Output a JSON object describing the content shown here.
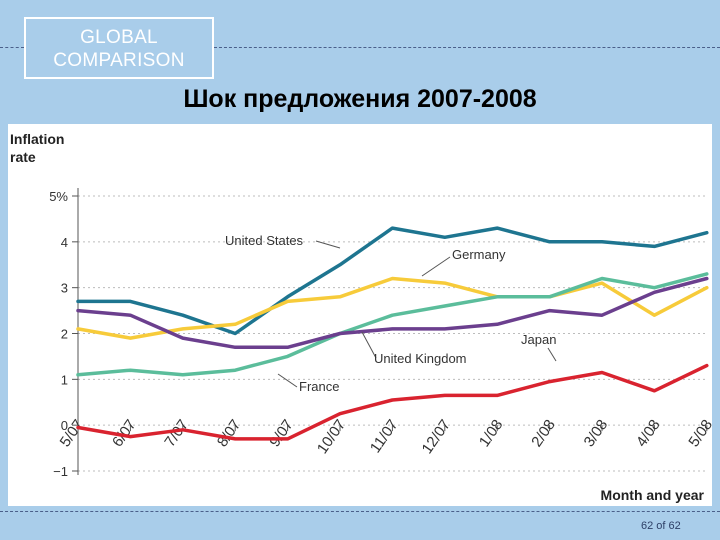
{
  "header": {
    "badge_line1": "GLOBAL",
    "badge_line2": "COMPARISON",
    "title": "Шок предложения 2007-2008"
  },
  "footer": {
    "page": "62 of 62"
  },
  "colors": {
    "United States": "#1e7590",
    "Germany": "#f7cb3a",
    "United Kingdom": "#6b3f8e",
    "Japan": "#6b3f8e",
    "France": "#5bbd9b",
    "red": "#d9232f"
  },
  "chart_data": {
    "type": "line",
    "ylabel_line1": "Inflation",
    "ylabel_line2": "rate",
    "xlabel": "Month and year",
    "ylim": [
      -1,
      5
    ],
    "yticks": [
      {
        "v": 5,
        "label": "5%"
      },
      {
        "v": 4,
        "label": "4"
      },
      {
        "v": 3,
        "label": "3"
      },
      {
        "v": 2,
        "label": "2"
      },
      {
        "v": 1,
        "label": "1"
      },
      {
        "v": 0,
        "label": "0"
      },
      {
        "v": -1,
        "label": "−1"
      }
    ],
    "categories": [
      "5/07",
      "6/07",
      "7/07",
      "8/07",
      "9/07",
      "10/07",
      "11/07",
      "12/07",
      "1/08",
      "2/08",
      "3/08",
      "4/08",
      "5/08"
    ],
    "series": [
      {
        "name": "United States",
        "color": "#1e7590",
        "values": [
          2.7,
          2.7,
          2.4,
          2.0,
          2.8,
          3.5,
          4.3,
          4.1,
          4.3,
          4.0,
          4.0,
          3.9,
          4.2
        ]
      },
      {
        "name": "Germany",
        "color": "#f7cb3a",
        "values": [
          2.1,
          1.9,
          2.1,
          2.2,
          2.7,
          2.8,
          3.2,
          3.1,
          2.8,
          2.8,
          3.1,
          2.4,
          3.0
        ]
      },
      {
        "name": "France",
        "color": "#5bbd9b",
        "values": [
          1.1,
          1.2,
          1.1,
          1.2,
          1.5,
          2.0,
          2.4,
          2.6,
          2.8,
          2.8,
          3.2,
          3.0,
          3.3
        ]
      },
      {
        "name": "United Kingdom",
        "color": "#6b3f8e",
        "values": [
          2.5,
          2.4,
          1.9,
          1.7,
          1.7,
          2.0,
          2.1,
          2.1,
          2.2,
          2.5,
          2.4,
          2.9,
          3.2
        ]
      },
      {
        "name": "",
        "color": "#d9232f",
        "values": [
          -0.05,
          -0.25,
          -0.1,
          -0.3,
          -0.3,
          0.25,
          0.55,
          0.65,
          0.65,
          0.95,
          1.15,
          0.75,
          1.3
        ]
      }
    ],
    "annotations": [
      {
        "text": "United States"
      },
      {
        "text": "Germany"
      },
      {
        "text": "United Kingdom"
      },
      {
        "text": "Japan"
      },
      {
        "text": "France"
      }
    ]
  }
}
